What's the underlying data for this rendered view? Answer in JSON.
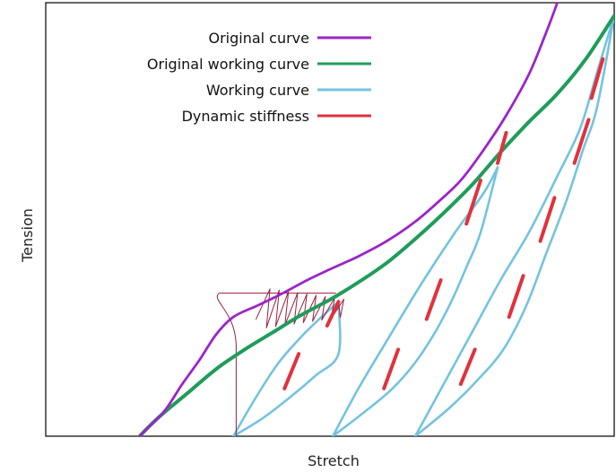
{
  "chart_data": {
    "type": "line",
    "title": "",
    "xlabel": "Stretch",
    "ylabel": "Tension",
    "xlim": [
      0,
      100
    ],
    "ylim": [
      0,
      100
    ],
    "grid": false,
    "legend_position": "top-left",
    "x_ticks_shown": false,
    "y_ticks_shown": false,
    "colors": {
      "original_curve": "#9b24c9",
      "original_working_curve": "#1f9c5a",
      "working_curve": "#74c3e0",
      "dynamic_stiffness": "#e0323c",
      "hysteresis_trace": "#9a1e3c"
    },
    "series": [
      {
        "name": "Original curve",
        "kind": "line",
        "color": "#9b24c9",
        "points": [
          [
            16.5,
            0
          ],
          [
            18,
            2
          ],
          [
            21,
            6
          ],
          [
            24,
            12
          ],
          [
            27,
            17.5
          ],
          [
            30,
            23.5
          ],
          [
            33,
            27.5
          ],
          [
            37,
            30
          ],
          [
            41,
            32.5
          ],
          [
            46,
            36
          ],
          [
            50,
            38.5
          ],
          [
            55,
            41.5
          ],
          [
            60,
            45
          ],
          [
            65,
            49.5
          ],
          [
            69,
            54
          ],
          [
            73,
            59
          ],
          [
            77,
            66
          ],
          [
            81,
            74
          ],
          [
            85,
            83.5
          ],
          [
            88,
            93
          ],
          [
            90,
            100
          ]
        ]
      },
      {
        "name": "Original working curve",
        "kind": "line",
        "color": "#1f9c5a",
        "points": [
          [
            16.5,
            0
          ],
          [
            20,
            4.5
          ],
          [
            25,
            10
          ],
          [
            30,
            15.5
          ],
          [
            35,
            20
          ],
          [
            40,
            24
          ],
          [
            45,
            28
          ],
          [
            50,
            31.5
          ],
          [
            55,
            35.5
          ],
          [
            60,
            40
          ],
          [
            65,
            45.5
          ],
          [
            70,
            51.5
          ],
          [
            75,
            58
          ],
          [
            80,
            65.5
          ],
          [
            85,
            72.5
          ],
          [
            90,
            79
          ],
          [
            95,
            87
          ],
          [
            100,
            97
          ]
        ]
      },
      {
        "name": "Working curve",
        "kind": "line",
        "color": "#74c3e0",
        "segments": [
          [
            [
              33,
              0
            ],
            [
              38,
              4
            ],
            [
              43,
              9
            ],
            [
              47.5,
              14
            ],
            [
              51.5,
              19
            ],
            [
              51.5,
              31
            ]
          ],
          [
            [
              33,
              0
            ],
            [
              37,
              9
            ],
            [
              41,
              17
            ],
            [
              45,
              23
            ],
            [
              48.5,
              27.5
            ],
            [
              51.5,
              31
            ]
          ],
          [
            [
              50.5,
              0
            ],
            [
              56,
              5.5
            ],
            [
              61,
              11
            ],
            [
              65,
              17
            ],
            [
              68.5,
              24
            ],
            [
              71.5,
              31.5
            ],
            [
              74,
              39
            ],
            [
              76.5,
              47
            ],
            [
              79.5,
              62
            ]
          ],
          [
            [
              50.5,
              0
            ],
            [
              55,
              11
            ],
            [
              60,
              22
            ],
            [
              66,
              35
            ],
            [
              72,
              47
            ],
            [
              77,
              56
            ],
            [
              79.5,
              62
            ]
          ],
          [
            [
              65,
              0
            ],
            [
              71,
              6.5
            ],
            [
              76,
              13
            ],
            [
              80.5,
              20
            ],
            [
              84.5,
              30
            ],
            [
              88,
              42
            ],
            [
              91.5,
              54
            ],
            [
              94.5,
              66
            ],
            [
              97,
              76
            ],
            [
              100,
              97
            ]
          ],
          [
            [
              65,
              0
            ],
            [
              70,
              12
            ],
            [
              75,
              24
            ],
            [
              80,
              36
            ],
            [
              85,
              47
            ],
            [
              90,
              60
            ],
            [
              94,
              71
            ],
            [
              97,
              84
            ],
            [
              100,
              97
            ]
          ]
        ]
      },
      {
        "name": "Dynamic stiffness",
        "kind": "dashes",
        "color": "#e0323c",
        "segments": [
          [
            [
              42,
              11
            ],
            [
              44.5,
              19
            ]
          ],
          [
            [
              49.5,
              25.5
            ],
            [
              51.5,
              31
            ]
          ],
          [
            [
              59.5,
              11
            ],
            [
              62,
              20
            ]
          ],
          [
            [
              67,
              27
            ],
            [
              69.5,
              36
            ]
          ],
          [
            [
              74,
              49
            ],
            [
              76.5,
              59
            ]
          ],
          [
            [
              79.5,
              63
            ],
            [
              81,
              70
            ]
          ],
          [
            [
              73,
              12
            ],
            [
              75.5,
              20
            ]
          ],
          [
            [
              81.5,
              27.5
            ],
            [
              84,
              37
            ]
          ],
          [
            [
              87,
              45
            ],
            [
              89.5,
              55
            ]
          ],
          [
            [
              93,
              63
            ],
            [
              95.5,
              73
            ]
          ],
          [
            [
              96,
              78
            ],
            [
              98,
              87
            ]
          ]
        ]
      }
    ],
    "hysteresis_trace": {
      "color": "#9a1e3c",
      "vertical_x": 33.5,
      "start": [
        33.5,
        0
      ],
      "top_left": [
        30.5,
        33
      ],
      "top_right": [
        51,
        33
      ],
      "loops": 9,
      "end": [
        51.5,
        31
      ]
    },
    "legend": [
      {
        "label": "Original curve",
        "color": "#9b24c9",
        "series_ref": "original_curve"
      },
      {
        "label": "Original working curve",
        "color": "#1f9c5a",
        "series_ref": "original_working_curve"
      },
      {
        "label": "Working curve",
        "color": "#74c3e0",
        "series_ref": "working_curve"
      },
      {
        "label": "Dynamic stiffness",
        "color": "#e0323c",
        "series_ref": "dynamic_stiffness"
      }
    ]
  }
}
